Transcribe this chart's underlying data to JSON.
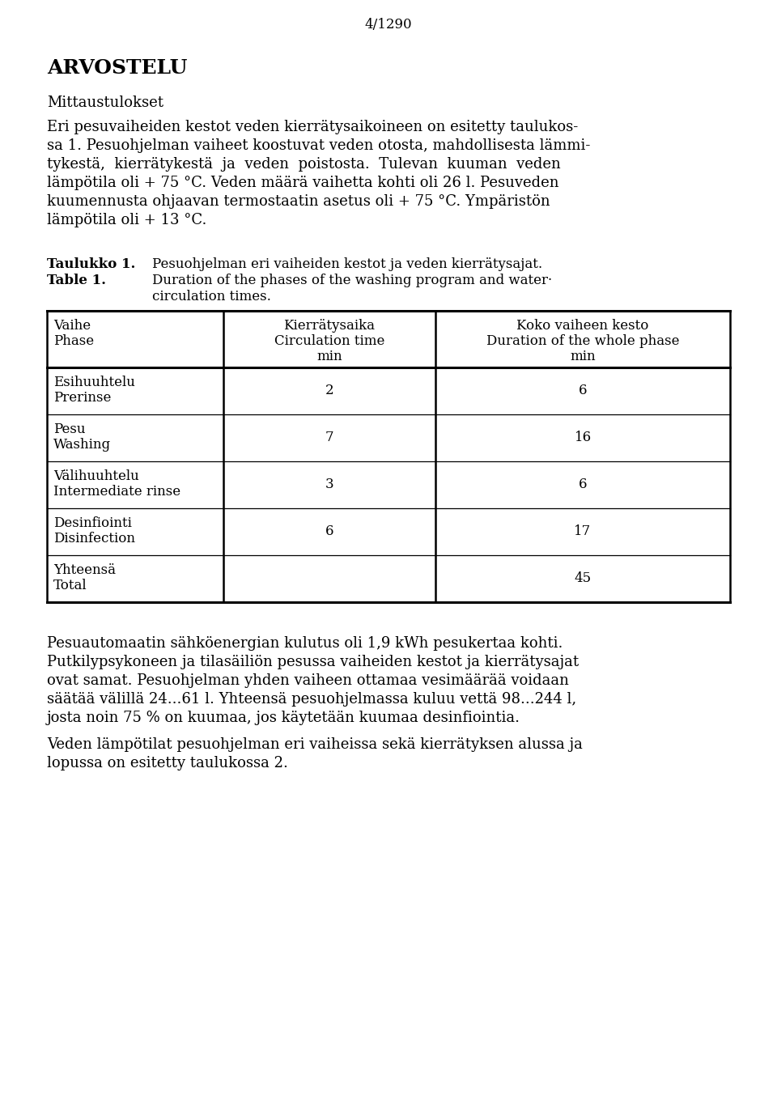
{
  "page_number": "4/1290",
  "title": "ARVOSTELU",
  "subtitle": "Mittaustulokset",
  "para1_lines": [
    "Eri pesuvaiheiden kestot veden kierrätysaikoineen on esitetty taulukos-",
    "sa 1. Pesuohjelman vaiheet koostuvat veden otosta, mahdollisesta lämmi-",
    "tykestä,  kierrätykestä  ja  veden  poistosta.  Tulevan  kuuman  veden",
    "lämpötila oli + 75 °C. Veden määrä vaihetta kohti oli 26 l. Pesuveden",
    "kuumennusta ohjaavan termostaatin asetus oli + 75 °C. Ympäristön",
    "lämpötila oli + 13 °C."
  ],
  "table_label_fi": "Taulukko 1.",
  "table_label_en": "Table 1.",
  "table_desc_fi": "Pesuohjelman eri vaiheiden kestot ja veden kierrätysajat.",
  "table_desc_en1": "Duration of the phases of the washing program and water·",
  "table_desc_en2": "circulation times.",
  "col1_header_fi": "Vaihe",
  "col1_header_en": "Phase",
  "col2_header_fi": "Kierrätysaika",
  "col2_header_en": "Circulation time",
  "col2_header_unit": "min",
  "col3_header_fi": "Koko vaiheen kesto",
  "col3_header_en": "Duration of the whole phase",
  "col3_header_unit": "min",
  "rows": [
    {
      "fi": "Esihuuhtelu",
      "en": "Prerinse",
      "circ": "2",
      "duration": "6"
    },
    {
      "fi": "Pesu",
      "en": "Washing",
      "circ": "7",
      "duration": "16"
    },
    {
      "fi": "Välihuuhtelu",
      "en": "Intermediate rinse",
      "circ": "3",
      "duration": "6"
    },
    {
      "fi": "Desinfiointi",
      "en": "Disinfection",
      "circ": "6",
      "duration": "17"
    },
    {
      "fi": "Yhteensä",
      "en": "Total",
      "circ": "",
      "duration": "45"
    }
  ],
  "para2_lines": [
    "Pesuautomaatin sähköenergian kulutus oli 1,9 kWh pesukertaa kohti.",
    "Putkilypsykoneen ja tilasäiliön pesussa vaiheiden kestot ja kierrätysajat",
    "ovat samat. Pesuohjelman yhden vaiheen ottamaa vesimäärää voidaan",
    "säätää välillä 24...61 l. Yhteensä pesuohjelmassa kuluu vettä 98...244 l,",
    "josta noin 75 % on kuumaa, jos käytetään kuumaa desinfiointia."
  ],
  "para3_lines": [
    "Veden lämpötilat pesuohjelman eri vaiheissa sekä kierrätyksen alussa ja",
    "lopussa on esitetty taulukossa 2."
  ],
  "bg_color": "#ffffff",
  "text_color": "#000000"
}
